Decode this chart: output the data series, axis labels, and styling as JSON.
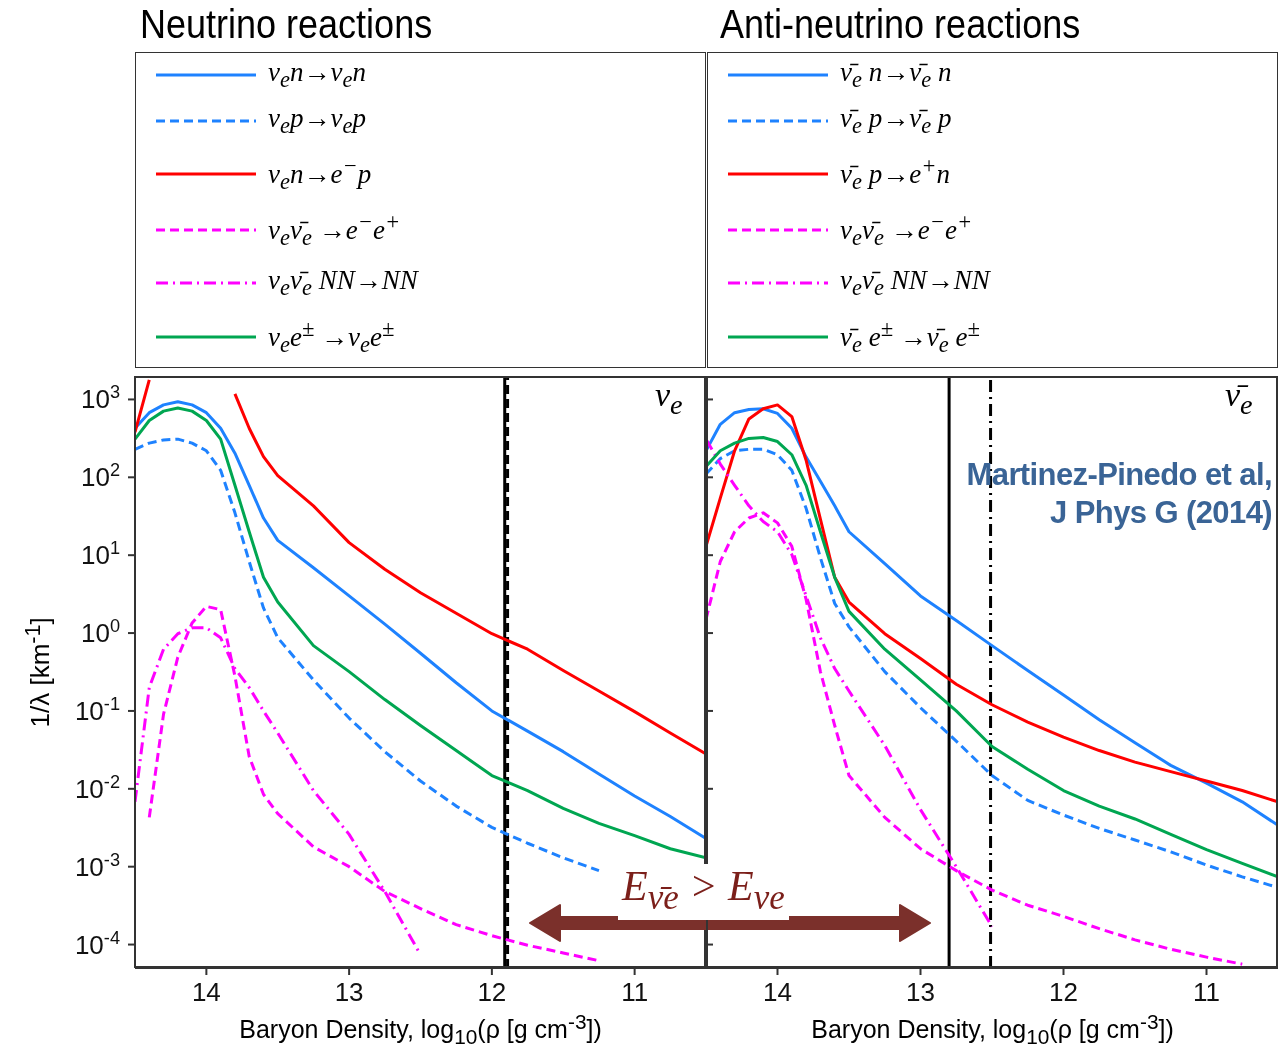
{
  "chart_data": [
    {
      "type": "line",
      "title": "Neutrino reactions",
      "xlabel": "Baryon Density, log$_{10}$(ρ [g cm$^{-3}$])",
      "ylabel": "1/λ [km$^{-1}$]",
      "log": "y",
      "grid": false,
      "legend": "top",
      "xlim": [
        14.5,
        10.5
      ],
      "xticks": [
        14,
        13,
        12,
        11
      ],
      "ylim": [
        5e-05,
        2000
      ],
      "yticks": [
        {
          "value": 0.0001,
          "label": "10$^{-4}$"
        },
        {
          "value": 0.001,
          "label": "10$^{-3}$"
        },
        {
          "value": 0.01,
          "label": "10$^{-2}$"
        },
        {
          "value": 0.1,
          "label": "10$^{-1}$"
        },
        {
          "value": 1,
          "label": "10$^{0}$"
        },
        {
          "value": 10,
          "label": "10$^{1}$"
        },
        {
          "value": 100,
          "label": "10$^{2}$"
        },
        {
          "value": 1000,
          "label": "10$^{3}$"
        }
      ],
      "x": [
        14.5,
        14.4,
        14.3,
        14.2,
        14.1,
        14.0,
        13.9,
        13.8,
        13.7,
        13.6,
        13.5,
        13.25,
        13.0,
        12.75,
        12.5,
        12.25,
        12.0,
        11.75,
        11.5,
        11.25,
        11.0,
        10.75,
        10.5
      ],
      "series": [
        {
          "name": "ν$_{e}$n→ν$_{e}$n",
          "color": "#1e82ff",
          "line_style": "solid",
          "values": [
            427,
            676,
            851,
            933,
            851,
            676,
            427,
            204,
            79,
            30,
            15.5,
            6.9,
            3.0,
            1.3,
            0.55,
            0.23,
            0.1,
            0.055,
            0.03,
            0.0155,
            0.0081,
            0.0044,
            0.0023
          ]
        },
        {
          "name": "ν$_{e}$p→ν$_{e}$p",
          "color": "#1e82ff",
          "line_style": "dashed",
          "values": [
            229,
            275,
            302,
            309,
            275,
            219,
            123,
            35,
            8.3,
            2.1,
            0.87,
            0.25,
            0.081,
            0.03,
            0.0126,
            0.006,
            0.0032,
            0.002,
            0.0013,
            0.00089,
            null,
            null,
            null
          ]
        },
        {
          "name": "ν$_{e}$n→e$^{−}$p",
          "color": "#ff0000",
          "line_style": "solid",
          "values": [
            380,
            1780,
            null,
            null,
            null,
            null,
            null,
            1180,
            427,
            184,
            105,
            43,
            14.5,
            6.6,
            3.3,
            1.8,
            0.98,
            0.62,
            0.33,
            0.18,
            0.098,
            0.052,
            0.028
          ]
        },
        {
          "name": "ν$_{e}$ν̄$_{e}$ →e$^{−}$e$^{+}$",
          "color": "#ff00ff",
          "line_style": "dashed",
          "values": [
            null,
            0.0043,
            0.091,
            0.49,
            1.35,
            2.2,
            2.0,
            0.28,
            0.026,
            0.0085,
            0.0048,
            0.0018,
            0.001,
            0.00048,
            0.00029,
            0.00018,
            0.00013,
            9.8e-05,
            7.8e-05,
            6.2e-05,
            null,
            null,
            null
          ]
        },
        {
          "name": "ν$_{e}$ν̄$_{e}$ NN→NN",
          "color": "#ff00ff",
          "line_style": "dashdot",
          "values": [
            0.0068,
            0.2,
            0.62,
            0.98,
            1.17,
            1.17,
            0.87,
            0.35,
            0.2,
            0.1,
            0.052,
            0.0095,
            0.0026,
            0.00048,
            7.4e-05,
            null,
            null,
            null,
            null,
            null,
            null,
            null,
            null
          ]
        },
        {
          "name": "ν$_{e}$e$^{±}$ →ν$_{e}$e$^{±}$",
          "color": "#00a651",
          "line_style": "solid",
          "values": [
            309,
            537,
            708,
            776,
            708,
            537,
            309,
            79,
            20,
            5.2,
            2.5,
            0.69,
            0.32,
            0.14,
            0.065,
            0.031,
            0.0148,
            0.0095,
            0.0056,
            0.0036,
            0.0025,
            0.0017,
            0.0013
          ]
        }
      ],
      "ref_lines": [
        {
          "axis": "x",
          "value": 11.91,
          "color": "#000000",
          "line_style": "solid"
        },
        {
          "axis": "x",
          "value": 11.89,
          "color": "#000000",
          "line_style": "dashed"
        }
      ],
      "annotations": [
        "ν$_{e}$",
        "E$_{ν̄e}$ > E$_{νe}$"
      ]
    },
    {
      "type": "line",
      "title": "Anti-neutrino reactions",
      "xlabel": "Baryon Density, log$_{10}$(ρ [g cm$^{-3}$])",
      "log": "y",
      "grid": false,
      "legend": "top",
      "tick_labels": "x",
      "xlim": [
        14.5,
        10.5
      ],
      "xticks": [
        14,
        13,
        12,
        11
      ],
      "ylim": [
        5e-05,
        2000
      ],
      "yticks": [
        0.0001,
        0.001,
        0.01,
        0.1,
        1,
        10,
        100,
        1000
      ],
      "x": [
        14.5,
        14.4,
        14.3,
        14.2,
        14.1,
        14.0,
        13.9,
        13.8,
        13.7,
        13.6,
        13.5,
        13.25,
        13.0,
        12.75,
        12.5,
        12.25,
        12.0,
        11.75,
        11.5,
        11.25,
        11.0,
        10.75,
        10.5
      ],
      "series": [
        {
          "name": "ν̄$_{e}$ n→ν̄$_{e}$ n",
          "color": "#1e82ff",
          "line_style": "solid",
          "values": [
            219,
            479,
            676,
            741,
            759,
            661,
            427,
            182,
            89,
            43,
            20,
            7.8,
            3.0,
            1.45,
            0.69,
            0.33,
            0.16,
            0.077,
            0.039,
            0.02,
            0.0118,
            0.0068,
            0.0034
          ]
        },
        {
          "name": "ν̄$_{e}$ p→ν̄$_{e}$ p",
          "color": "#1e82ff",
          "line_style": "dashed",
          "values": [
            110,
            174,
            219,
            229,
            229,
            195,
            123,
            40,
            9.3,
            2.4,
            1.2,
            0.32,
            0.11,
            0.041,
            0.0148,
            0.0071,
            0.0046,
            0.0031,
            0.0022,
            0.00155,
            0.00105,
            0.00074,
            0.00054
          ]
        },
        {
          "name": "ν̄$_{e}$ p→e$^{+}$n",
          "color": "#ff0000",
          "line_style": "solid",
          "values": [
            13,
            54,
            219,
            562,
            759,
            851,
            603,
            166,
            29,
            5.2,
            2.5,
            0.98,
            0.47,
            0.22,
            0.12,
            0.072,
            0.046,
            0.031,
            0.022,
            0.0166,
            0.0126,
            0.0095,
            0.0068
          ]
        },
        {
          "name": "ν$_{e}$ν̄$_{e}$ →e$^{−}$e$^{+}$",
          "color": "#ff00ff",
          "line_style": "dashed",
          "values": [
            1.5,
            8.3,
            20,
            30,
            35,
            26,
            13,
            2.7,
            0.32,
            0.065,
            0.0148,
            0.0043,
            0.0017,
            0.00089,
            0.0005,
            0.00032,
            0.00023,
            0.00016,
            0.000115,
            8.7e-05,
            6.9e-05,
            5.6e-05,
            null
          ]
        },
        {
          "name": "ν$_{e}$ν̄$_{e}$ NN→NN",
          "color": "#ff00ff",
          "line_style": "dashdot",
          "values": [
            309,
            148,
            79,
            43,
            27,
            20,
            10.2,
            3.0,
            0.87,
            0.35,
            0.18,
            0.036,
            0.0054,
            0.001,
            0.00017,
            null,
            null,
            null,
            null,
            null,
            null,
            null,
            null
          ]
        },
        {
          "name": "ν̄$_{e}$ e$^{±}$ →ν̄$_{e}$ e$^{±}$",
          "color": "#00a651",
          "line_style": "solid",
          "values": [
            138,
            219,
            275,
            316,
            324,
            288,
            195,
            79,
            20,
            5.2,
            1.9,
            0.62,
            0.25,
            0.1,
            0.035,
            0.0178,
            0.0095,
            0.006,
            0.0041,
            0.0026,
            0.00166,
            0.0011,
            0.00074
          ]
        }
      ],
      "ref_lines": [
        {
          "axis": "x",
          "value": 12.8,
          "color": "#000000",
          "line_style": "solid"
        },
        {
          "axis": "x",
          "value": 12.51,
          "color": "#000000",
          "line_style": "dashdot"
        }
      ],
      "annotations": [
        "ν̄$_{e}$",
        "Martinez-Pinedo et al, J Phys G (2014)"
      ]
    }
  ]
}
